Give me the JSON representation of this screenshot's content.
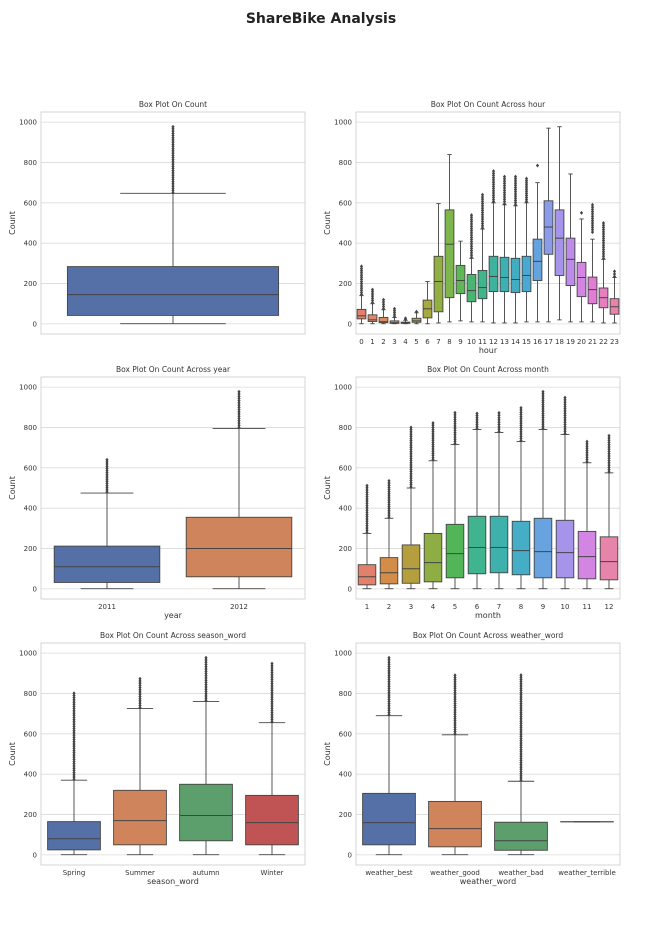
{
  "figure": {
    "title": "ShareBike Analysis"
  },
  "chart_data": [
    {
      "type": "box",
      "title": "Box Plot On Count",
      "xlabel": "",
      "ylabel": "Count",
      "ylim": [
        -50,
        1050
      ],
      "yticks": [
        0,
        200,
        400,
        600,
        800,
        1000
      ],
      "categories": [
        ""
      ],
      "colors": [
        "#5470a6"
      ],
      "boxes": [
        {
          "whislo": 1,
          "q1": 42,
          "med": 145,
          "q3": 284,
          "whishi": 647,
          "fliers": [
            650,
            977
          ]
        }
      ]
    },
    {
      "type": "box",
      "title": "Box Plot On Count Across hour",
      "xlabel": "hour",
      "ylabel": "Count",
      "ylim": [
        -50,
        1050
      ],
      "yticks": [
        0,
        200,
        400,
        600,
        800,
        1000
      ],
      "categories": [
        "0",
        "1",
        "2",
        "3",
        "4",
        "5",
        "6",
        "7",
        "8",
        "9",
        "10",
        "11",
        "12",
        "13",
        "14",
        "15",
        "16",
        "17",
        "18",
        "19",
        "20",
        "21",
        "22",
        "23"
      ],
      "colors": [
        "#e1806b",
        "#e1876a",
        "#db8d5c",
        "#cd9548",
        "#c49b41",
        "#b8a23e",
        "#a6a93e",
        "#93af42",
        "#7db64a",
        "#5fb756",
        "#4ab571",
        "#40b48a",
        "#3cb29f",
        "#3eb0b1",
        "#42adc2",
        "#4aa9d2",
        "#64a3de",
        "#8a9be9",
        "#a594ea",
        "#bd8ce8",
        "#d385e3",
        "#e27dd6",
        "#e67fc2",
        "#e684aa"
      ],
      "boxes": [
        {
          "whislo": 1,
          "q1": 25,
          "med": 40,
          "q3": 72,
          "whishi": 140,
          "fliers": [
            145,
            285
          ]
        },
        {
          "whislo": 1,
          "q1": 12,
          "med": 20,
          "q3": 45,
          "whishi": 100,
          "fliers": [
            105,
            170
          ]
        },
        {
          "whislo": 1,
          "q1": 6,
          "med": 11,
          "q3": 32,
          "whishi": 70,
          "fliers": [
            75,
            120
          ]
        },
        {
          "whislo": 1,
          "q1": 3,
          "med": 6,
          "q3": 15,
          "whishi": 32,
          "fliers": [
            35,
            75
          ]
        },
        {
          "whislo": 1,
          "q1": 3,
          "med": 6,
          "q3": 9,
          "whishi": 18,
          "fliers": [
            22,
            28
          ]
        },
        {
          "whislo": 1,
          "q1": 8,
          "med": 15,
          "q3": 28,
          "whishi": 55,
          "fliers": [
            60
          ]
        },
        {
          "whislo": 1,
          "q1": 30,
          "med": 75,
          "q3": 118,
          "whishi": 210,
          "fliers": []
        },
        {
          "whislo": 5,
          "q1": 60,
          "med": 210,
          "q3": 335,
          "whishi": 596,
          "fliers": []
        },
        {
          "whislo": 10,
          "q1": 130,
          "med": 395,
          "q3": 565,
          "whishi": 839,
          "fliers": []
        },
        {
          "whislo": 15,
          "q1": 150,
          "med": 215,
          "q3": 290,
          "whishi": 410,
          "fliers": []
        },
        {
          "whislo": 10,
          "q1": 110,
          "med": 165,
          "q3": 245,
          "whishi": 325,
          "fliers": [
            330,
            539
          ]
        },
        {
          "whislo": 10,
          "q1": 125,
          "med": 180,
          "q3": 265,
          "whishi": 470,
          "fliers": [
            475,
            640
          ]
        },
        {
          "whislo": 5,
          "q1": 160,
          "med": 235,
          "q3": 335,
          "whishi": 600,
          "fliers": [
            605,
            757
          ]
        },
        {
          "whislo": 5,
          "q1": 160,
          "med": 230,
          "q3": 330,
          "whishi": 590,
          "fliers": [
            595,
            730
          ]
        },
        {
          "whislo": 5,
          "q1": 155,
          "med": 220,
          "q3": 325,
          "whishi": 585,
          "fliers": [
            590,
            730
          ]
        },
        {
          "whislo": 10,
          "q1": 160,
          "med": 240,
          "q3": 335,
          "whishi": 600,
          "fliers": [
            605,
            720
          ]
        },
        {
          "whislo": 10,
          "q1": 215,
          "med": 310,
          "q3": 420,
          "whishi": 700,
          "fliers": [
            785
          ]
        },
        {
          "whislo": 10,
          "q1": 345,
          "med": 480,
          "q3": 610,
          "whishi": 970,
          "fliers": []
        },
        {
          "whislo": 20,
          "q1": 240,
          "med": 425,
          "q3": 565,
          "whishi": 977,
          "fliers": []
        },
        {
          "whislo": 10,
          "q1": 190,
          "med": 320,
          "q3": 425,
          "whishi": 743,
          "fliers": []
        },
        {
          "whislo": 10,
          "q1": 135,
          "med": 230,
          "q3": 305,
          "whishi": 520,
          "fliers": [
            550
          ]
        },
        {
          "whislo": 10,
          "q1": 100,
          "med": 170,
          "q3": 232,
          "whishi": 420,
          "fliers": [
            455,
            590
          ]
        },
        {
          "whislo": 5,
          "q1": 80,
          "med": 130,
          "q3": 178,
          "whishi": 320,
          "fliers": [
            325,
            500
          ]
        },
        {
          "whislo": 5,
          "q1": 48,
          "med": 85,
          "q3": 125,
          "whishi": 230,
          "fliers": [
            235,
            260
          ]
        }
      ]
    },
    {
      "type": "box",
      "title": "Box Plot On Count Across year",
      "xlabel": "year",
      "ylabel": "Count",
      "ylim": [
        -50,
        1050
      ],
      "yticks": [
        0,
        200,
        400,
        600,
        800,
        1000
      ],
      "categories": [
        "2011",
        "2012"
      ],
      "colors": [
        "#5470a6",
        "#d0845c"
      ],
      "boxes": [
        {
          "whislo": 1,
          "q1": 32,
          "med": 110,
          "q3": 212,
          "whishi": 475,
          "fliers": [
            480,
            640
          ]
        },
        {
          "whislo": 1,
          "q1": 60,
          "med": 200,
          "q3": 355,
          "whishi": 795,
          "fliers": [
            800,
            977
          ]
        }
      ]
    },
    {
      "type": "box",
      "title": "Box Plot On Count Across month",
      "xlabel": "month",
      "ylabel": "Count",
      "ylim": [
        -50,
        1050
      ],
      "yticks": [
        0,
        200,
        400,
        600,
        800,
        1000
      ],
      "categories": [
        "1",
        "2",
        "3",
        "4",
        "5",
        "6",
        "7",
        "8",
        "9",
        "10",
        "11",
        "12"
      ],
      "colors": [
        "#e1806b",
        "#d48d48",
        "#b59e3e",
        "#8eae45",
        "#52b658",
        "#40b48e",
        "#3eb1ac",
        "#45adc6",
        "#68a2df",
        "#a594ea",
        "#d385e3",
        "#e684aa"
      ],
      "boxes": [
        {
          "whislo": 1,
          "q1": 20,
          "med": 60,
          "q3": 120,
          "whishi": 275,
          "fliers": [
            280,
            512
          ]
        },
        {
          "whislo": 1,
          "q1": 25,
          "med": 80,
          "q3": 155,
          "whishi": 350,
          "fliers": [
            355,
            535
          ]
        },
        {
          "whislo": 1,
          "q1": 28,
          "med": 100,
          "q3": 218,
          "whishi": 500,
          "fliers": [
            505,
            800
          ]
        },
        {
          "whislo": 1,
          "q1": 35,
          "med": 130,
          "q3": 275,
          "whishi": 635,
          "fliers": [
            640,
            822
          ]
        },
        {
          "whislo": 1,
          "q1": 55,
          "med": 175,
          "q3": 320,
          "whishi": 715,
          "fliers": [
            720,
            873
          ]
        },
        {
          "whislo": 1,
          "q1": 75,
          "med": 205,
          "q3": 360,
          "whishi": 790,
          "fliers": [
            795,
            869
          ]
        },
        {
          "whislo": 1,
          "q1": 80,
          "med": 205,
          "q3": 360,
          "whishi": 775,
          "fliers": [
            780,
            872
          ]
        },
        {
          "whislo": 1,
          "q1": 70,
          "med": 190,
          "q3": 335,
          "whishi": 730,
          "fliers": [
            735,
            897
          ]
        },
        {
          "whislo": 1,
          "q1": 55,
          "med": 185,
          "q3": 350,
          "whishi": 790,
          "fliers": [
            795,
            977
          ]
        },
        {
          "whislo": 1,
          "q1": 55,
          "med": 180,
          "q3": 340,
          "whishi": 765,
          "fliers": [
            770,
            948
          ]
        },
        {
          "whislo": 1,
          "q1": 50,
          "med": 160,
          "q3": 285,
          "whishi": 625,
          "fliers": [
            630,
            730
          ]
        },
        {
          "whislo": 1,
          "q1": 45,
          "med": 135,
          "q3": 258,
          "whishi": 575,
          "fliers": [
            580,
            759
          ]
        }
      ]
    },
    {
      "type": "box",
      "title": "Box Plot On Count Across season_word",
      "xlabel": "season_word",
      "ylabel": "Count",
      "ylim": [
        -50,
        1050
      ],
      "yticks": [
        0,
        200,
        400,
        600,
        800,
        1000
      ],
      "categories": [
        "Spring",
        "Summer",
        "autumn",
        "Winter"
      ],
      "colors": [
        "#5470a6",
        "#d0845c",
        "#5c9e6c",
        "#c05454"
      ],
      "boxes": [
        {
          "whislo": 1,
          "q1": 25,
          "med": 80,
          "q3": 165,
          "whishi": 370,
          "fliers": [
            375,
            801
          ]
        },
        {
          "whislo": 1,
          "q1": 50,
          "med": 170,
          "q3": 320,
          "whishi": 725,
          "fliers": [
            730,
            873
          ]
        },
        {
          "whislo": 1,
          "q1": 70,
          "med": 195,
          "q3": 350,
          "whishi": 760,
          "fliers": [
            765,
            977
          ]
        },
        {
          "whislo": 1,
          "q1": 50,
          "med": 160,
          "q3": 295,
          "whishi": 655,
          "fliers": [
            660,
            948
          ]
        }
      ]
    },
    {
      "type": "box",
      "title": "Box Plot On Count Across weather_word",
      "xlabel": "weather_word",
      "ylabel": "Count",
      "ylim": [
        -50,
        1050
      ],
      "yticks": [
        0,
        200,
        400,
        600,
        800,
        1000
      ],
      "categories": [
        "weather_best",
        "weather_good",
        "weather_bad",
        "weather_terrible"
      ],
      "colors": [
        "#5470a6",
        "#d0845c",
        "#5c9e6c",
        "#c05454"
      ],
      "boxes": [
        {
          "whislo": 1,
          "q1": 50,
          "med": 160,
          "q3": 305,
          "whishi": 690,
          "fliers": [
            695,
            977
          ]
        },
        {
          "whislo": 1,
          "q1": 40,
          "med": 130,
          "q3": 265,
          "whishi": 595,
          "fliers": [
            600,
            890
          ]
        },
        {
          "whislo": 1,
          "q1": 23,
          "med": 70,
          "q3": 162,
          "whishi": 365,
          "fliers": [
            370,
            891
          ]
        },
        {
          "whislo": 164,
          "q1": 164,
          "med": 164,
          "q3": 164,
          "whishi": 164,
          "fliers": []
        }
      ]
    }
  ]
}
